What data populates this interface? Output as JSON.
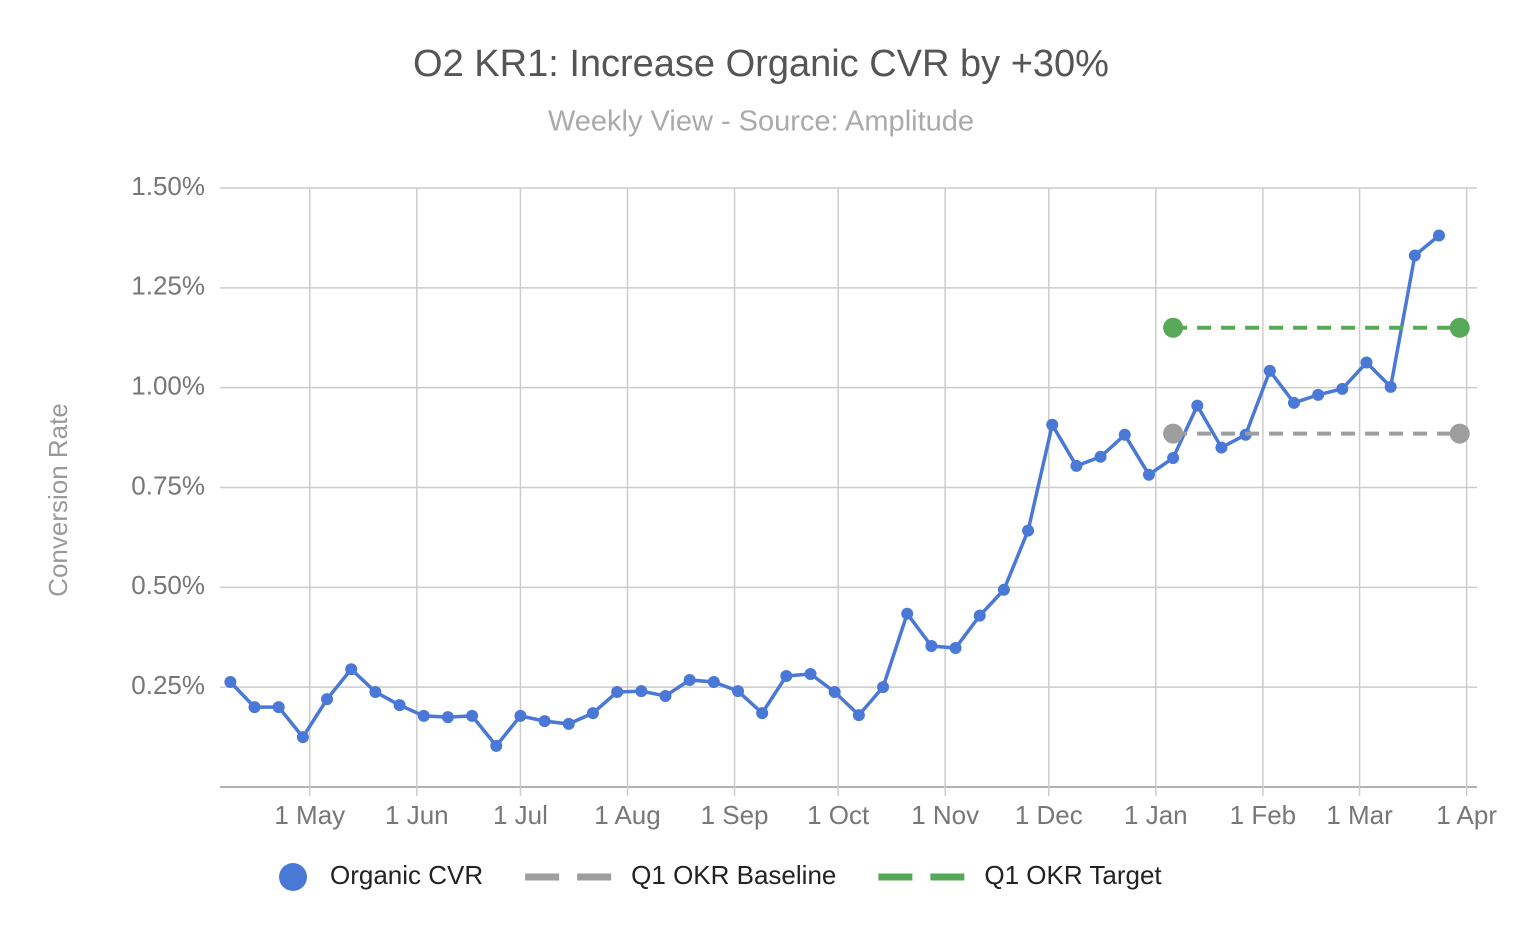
{
  "chart_data": {
    "type": "line",
    "title": "O2 KR1: Increase Organic CVR by +30%",
    "subtitle": "Weekly View - Source: Amplitude",
    "y_label": "Conversion Rate",
    "xlim": [
      "5 Apr",
      "4 Apr"
    ],
    "xticks": [
      "1 May",
      "1 Jun",
      "1 Jul",
      "1 Aug",
      "1 Sep",
      "1 Oct",
      "1 Nov",
      "1 Dec",
      "1 Jan",
      "1 Feb",
      "1 Mar",
      "1 Apr"
    ],
    "ylim": [
      0,
      1.5
    ],
    "yticks": [
      {
        "value": 0.25,
        "label": "0.25%"
      },
      {
        "value": 0.5,
        "label": "0.50%"
      },
      {
        "value": 0.75,
        "label": "0.75%"
      },
      {
        "value": 1.0,
        "label": "1.00%"
      },
      {
        "value": 1.25,
        "label": "1.25%"
      },
      {
        "value": 1.5,
        "label": "1.50%"
      }
    ],
    "grid": true,
    "legend": "bottom",
    "series": [
      {
        "name": "Organic CVR",
        "color": "#4a78d6",
        "style": "solid",
        "x": [
          "8 Apr",
          "15 Apr",
          "22 Apr",
          "29 Apr",
          "6 May",
          "13 May",
          "20 May",
          "27 May",
          "3 Jun",
          "10 Jun",
          "17 Jun",
          "24 Jun",
          "1 Jul",
          "8 Jul",
          "15 Jul",
          "22 Jul",
          "29 Jul",
          "5 Aug",
          "12 Aug",
          "19 Aug",
          "26 Aug",
          "2 Sep",
          "9 Sep",
          "16 Sep",
          "23 Sep",
          "30 Sep",
          "7 Oct",
          "14 Oct",
          "21 Oct",
          "28 Oct",
          "4 Nov",
          "11 Nov",
          "18 Nov",
          "25 Nov",
          "2 Dec",
          "9 Dec",
          "16 Dec",
          "23 Dec",
          "30 Dec",
          "6 Jan",
          "13 Jan",
          "20 Jan",
          "27 Jan",
          "3 Feb",
          "10 Feb",
          "17 Feb",
          "24 Feb",
          "3 Mar",
          "10 Mar",
          "17 Mar",
          "24 Mar"
        ],
        "values": [
          0.263,
          0.2,
          0.2,
          0.125,
          0.22,
          0.295,
          0.238,
          0.205,
          0.178,
          0.175,
          0.178,
          0.103,
          0.178,
          0.165,
          0.158,
          0.185,
          0.238,
          0.24,
          0.228,
          0.268,
          0.263,
          0.24,
          0.185,
          0.278,
          0.283,
          0.238,
          0.18,
          0.25,
          0.434,
          0.353,
          0.348,
          0.429,
          0.494,
          0.642,
          0.907,
          0.804,
          0.827,
          0.882,
          0.782,
          0.824,
          0.955,
          0.85,
          0.882,
          1.042,
          0.962,
          0.982,
          0.997,
          1.063,
          1.002,
          1.331,
          1.381
        ]
      },
      {
        "name": "Q1 OKR Baseline",
        "color": "#9e9e9e",
        "style": "dashed",
        "x": [
          "6 Jan",
          "30 Mar"
        ],
        "values": [
          0.885,
          0.885
        ]
      },
      {
        "name": "Q1 OKR Target",
        "color": "#57a957",
        "style": "dashed",
        "x": [
          "6 Jan",
          "30 Mar"
        ],
        "values": [
          1.15,
          1.15
        ]
      }
    ]
  }
}
